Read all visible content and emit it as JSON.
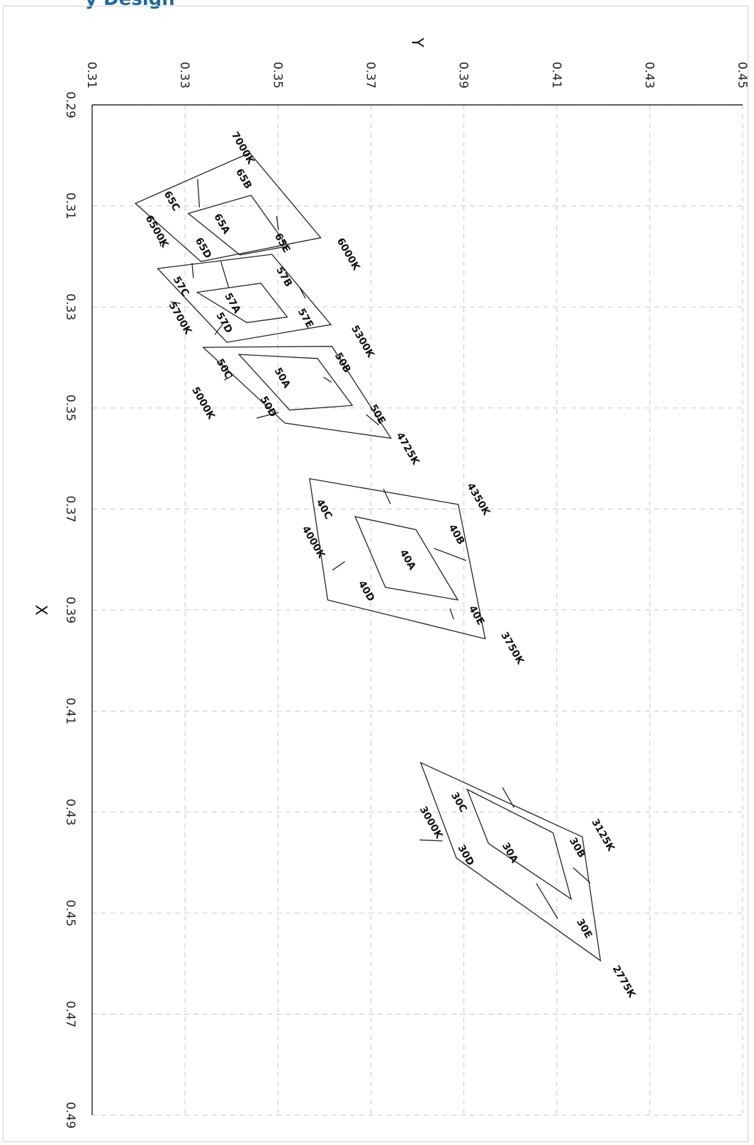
{
  "page": {
    "title": "y Design"
  },
  "chart_data": {
    "type": "diagram",
    "xlabel": "X",
    "ylabel": "Y",
    "xlim": [
      0.29,
      0.49
    ],
    "ylim": [
      0.31,
      0.45
    ],
    "x_ticks": [
      "0.29",
      "0.31",
      "0.33",
      "0.35",
      "0.37",
      "0.39",
      "0.41",
      "0.43",
      "0.45",
      "0.47",
      "0.49"
    ],
    "y_ticks": [
      "0.31",
      "0.33",
      "0.35",
      "0.37",
      "0.39",
      "0.41",
      "0.43",
      "0.45"
    ],
    "grid": true,
    "orientation": "rotated 90° (x increases downward, y increases rightward)",
    "groups": [
      {
        "name": "65",
        "outer": [
          [
            0.3095,
            0.3193
          ],
          [
            0.2995,
            0.3439
          ],
          [
            0.3163,
            0.3592
          ],
          [
            0.321,
            0.3334
          ]
        ],
        "inner": [
          [
            0.3115,
            0.3307
          ],
          [
            0.3079,
            0.3442
          ],
          [
            0.318,
            0.352
          ],
          [
            0.3197,
            0.3418
          ]
        ],
        "dividers": [
          [
            [
              0.3047,
              0.3327
            ],
            [
              0.3103,
              0.3331
            ]
          ],
          [
            [
              0.312,
              0.3497
            ],
            [
              0.3148,
              0.3501
            ]
          ],
          [
            [
              0.318,
              0.3248
            ],
            [
              0.3169,
              0.3245
            ]
          ],
          [
            [
              0.3243,
              0.3318
            ],
            [
              0.3213,
              0.3315
            ]
          ]
        ],
        "bin_labels": [
          {
            "text": "65A",
            "x": 0.3135,
            "y": 0.338
          },
          {
            "text": "65B",
            "x": 0.3046,
            "y": 0.3427
          },
          {
            "text": "65C",
            "x": 0.309,
            "y": 0.3272
          },
          {
            "text": "65D",
            "x": 0.3183,
            "y": 0.334
          },
          {
            "text": "65E",
            "x": 0.3173,
            "y": 0.351
          }
        ],
        "cct_labels": [
          {
            "text": "7000K",
            "x": 0.2985,
            "y": 0.3425
          },
          {
            "text": "6500K",
            "x": 0.315,
            "y": 0.324
          },
          {
            "text": "6000K",
            "x": 0.3195,
            "y": 0.3652
          }
        ]
      },
      {
        "name": "57",
        "outer": [
          [
            0.3224,
            0.3241
          ],
          [
            0.3196,
            0.3487
          ],
          [
            0.3335,
            0.3614
          ],
          [
            0.337,
            0.339
          ]
        ],
        "inner": [
          [
            0.3271,
            0.3326
          ],
          [
            0.3253,
            0.3463
          ],
          [
            0.332,
            0.352
          ],
          [
            0.3331,
            0.3433
          ]
        ],
        "dividers": [
          [
            [
              0.321,
              0.3377
            ],
            [
              0.3262,
              0.3394
            ]
          ],
          [
            [
              0.3262,
              0.3547
            ],
            [
              0.3283,
              0.3559
            ]
          ],
          [
            [
              0.329,
              0.3269
            ],
            [
              0.3293,
              0.329
            ]
          ],
          [
            [
              0.3355,
              0.3364
            ],
            [
              0.3328,
              0.3386
            ]
          ]
        ],
        "bin_labels": [
          {
            "text": "57A",
            "x": 0.3292,
            "y": 0.3403
          },
          {
            "text": "57B",
            "x": 0.324,
            "y": 0.3514
          },
          {
            "text": "57C",
            "x": 0.3259,
            "y": 0.3292
          },
          {
            "text": "57D",
            "x": 0.3331,
            "y": 0.3385
          },
          {
            "text": "57E",
            "x": 0.3322,
            "y": 0.356
          }
        ],
        "cct_labels": [
          {
            "text": "5700K",
            "x": 0.3322,
            "y": 0.329
          },
          {
            "text": "5300K",
            "x": 0.3368,
            "y": 0.3683
          }
        ]
      },
      {
        "name": "50",
        "outer": [
          [
            0.338,
            0.3339
          ],
          [
            0.3378,
            0.3616
          ],
          [
            0.356,
            0.3743
          ],
          [
            0.353,
            0.3515
          ]
        ],
        "inner": [
          [
            0.3394,
            0.3416
          ],
          [
            0.3402,
            0.3585
          ],
          [
            0.3495,
            0.366
          ],
          [
            0.3504,
            0.3525
          ]
        ],
        "dividers": [
          [
            [
              0.3445,
              0.3384
            ],
            [
              0.3436,
              0.3402
            ]
          ],
          [
            [
              0.3439,
              0.3598
            ],
            [
              0.3449,
              0.3615
            ]
          ],
          [
            [
              0.3513,
              0.369
            ],
            [
              0.3534,
              0.3717
            ]
          ],
          [
            [
              0.352,
              0.3454
            ],
            [
              0.3509,
              0.3501
            ]
          ]
        ],
        "bin_labels": [
          {
            "text": "50A",
            "x": 0.344,
            "y": 0.351
          },
          {
            "text": "50B",
            "x": 0.341,
            "y": 0.364
          },
          {
            "text": "50C",
            "x": 0.3422,
            "y": 0.3385
          },
          {
            "text": "50D",
            "x": 0.3497,
            "y": 0.348
          },
          {
            "text": "50E",
            "x": 0.3512,
            "y": 0.3715
          }
        ],
        "cct_labels": [
          {
            "text": "5000K",
            "x": 0.349,
            "y": 0.334
          },
          {
            "text": "4725K",
            "x": 0.358,
            "y": 0.378
          }
        ]
      },
      {
        "name": "40",
        "outer": [
          [
            0.364,
            0.3568
          ],
          [
            0.3691,
            0.3888
          ],
          [
            0.3957,
            0.3946
          ],
          [
            0.388,
            0.3607
          ]
        ],
        "inner": [
          [
            0.3715,
            0.3666
          ],
          [
            0.3741,
            0.3797
          ],
          [
            0.388,
            0.3887
          ],
          [
            0.3855,
            0.3731
          ]
        ],
        "dividers": [
          [
            [
              0.366,
              0.3727
            ],
            [
              0.369,
              0.3742
            ]
          ],
          [
            [
              0.3778,
              0.3836
            ],
            [
              0.3802,
              0.3905
            ]
          ],
          [
            [
              0.3897,
              0.387
            ],
            [
              0.3918,
              0.3878
            ]
          ],
          [
            [
              0.3821,
              0.3617
            ],
            [
              0.3804,
              0.3644
            ]
          ]
        ],
        "bin_labels": [
          {
            "text": "40A",
            "x": 0.38,
            "y": 0.378
          },
          {
            "text": "40B",
            "x": 0.375,
            "y": 0.3885
          },
          {
            "text": "40C",
            "x": 0.37,
            "y": 0.36
          },
          {
            "text": "40D",
            "x": 0.3862,
            "y": 0.3691
          },
          {
            "text": "40E",
            "x": 0.391,
            "y": 0.3928
          }
        ],
        "cct_labels": [
          {
            "text": "4000K",
            "x": 0.3765,
            "y": 0.3577
          },
          {
            "text": "4350K",
            "x": 0.368,
            "y": 0.3932
          },
          {
            "text": "3750K",
            "x": 0.3975,
            "y": 0.4005
          }
        ]
      },
      {
        "name": "30",
        "outer": [
          [
            0.4202,
            0.3807
          ],
          [
            0.4349,
            0.4155
          ],
          [
            0.4594,
            0.4194
          ],
          [
            0.4391,
            0.3884
          ]
        ],
        "inner": [
          [
            0.4255,
            0.3907
          ],
          [
            0.4341,
            0.4092
          ],
          [
            0.4472,
            0.4131
          ],
          [
            0.4362,
            0.3953
          ]
        ],
        "dividers": [
          [
            [
              0.4251,
              0.3983
            ],
            [
              0.4291,
              0.4008
            ]
          ],
          [
            [
              0.441,
              0.4135
            ],
            [
              0.444,
              0.4172
            ]
          ],
          [
            [
              0.4511,
              0.4102
            ],
            [
              0.4441,
              0.4056
            ]
          ],
          [
            [
              0.4355,
              0.3805
            ],
            [
              0.4357,
              0.3854
            ]
          ]
        ],
        "bin_labels": [
          {
            "text": "30A",
            "x": 0.438,
            "y": 0.4
          },
          {
            "text": "30B",
            "x": 0.437,
            "y": 0.4145
          },
          {
            "text": "30C",
            "x": 0.428,
            "y": 0.389
          },
          {
            "text": "30D",
            "x": 0.4385,
            "y": 0.3905
          },
          {
            "text": "30E",
            "x": 0.453,
            "y": 0.416
          }
        ],
        "cct_labels": [
          {
            "text": "3000K",
            "x": 0.432,
            "y": 0.383
          },
          {
            "text": "3125K",
            "x": 0.4345,
            "y": 0.42
          },
          {
            "text": "2775K",
            "x": 0.4635,
            "y": 0.4245
          }
        ]
      }
    ]
  }
}
